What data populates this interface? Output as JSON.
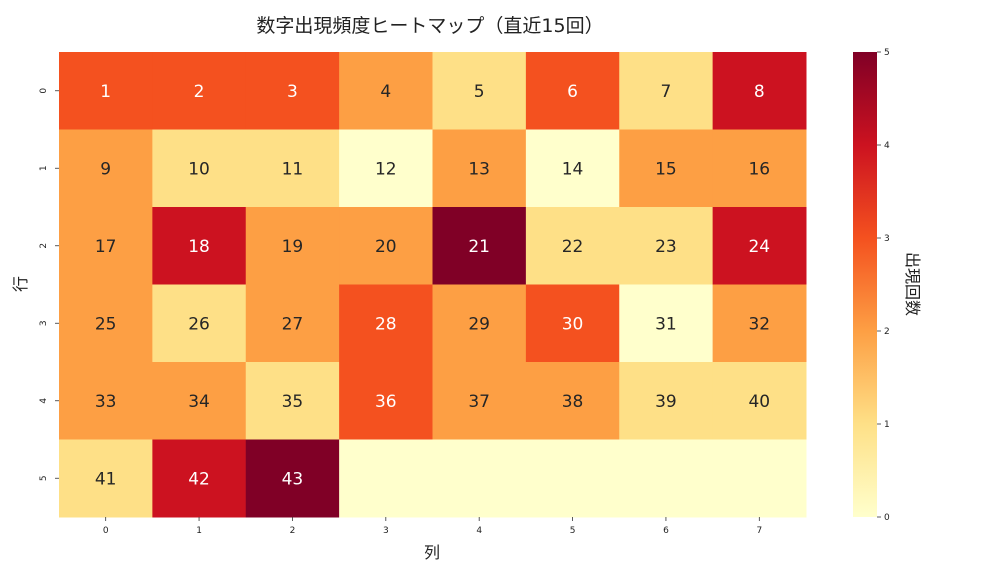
{
  "chart_data": {
    "type": "heatmap",
    "title": "数字出現頻度ヒートマップ（直近15回）",
    "xlabel": "列",
    "ylabel": "行",
    "x_ticks": [
      "0",
      "1",
      "2",
      "3",
      "4",
      "5",
      "6",
      "7"
    ],
    "y_ticks": [
      "0",
      "1",
      "2",
      "3",
      "4",
      "5"
    ],
    "values": [
      [
        3,
        3,
        3,
        2,
        1,
        3,
        1,
        4
      ],
      [
        2,
        1,
        1,
        0,
        2,
        0,
        2,
        2
      ],
      [
        2,
        4,
        2,
        2,
        5,
        1,
        1,
        4
      ],
      [
        2,
        1,
        2,
        3,
        2,
        3,
        0,
        2
      ],
      [
        2,
        2,
        1,
        3,
        2,
        2,
        1,
        1
      ],
      [
        1,
        4,
        5,
        0,
        0,
        0,
        0,
        0
      ]
    ],
    "annotations": [
      [
        "1",
        "2",
        "3",
        "4",
        "5",
        "6",
        "7",
        "8"
      ],
      [
        "9",
        "10",
        "11",
        "12",
        "13",
        "14",
        "15",
        "16"
      ],
      [
        "17",
        "18",
        "19",
        "20",
        "21",
        "22",
        "23",
        "24"
      ],
      [
        "25",
        "26",
        "27",
        "28",
        "29",
        "30",
        "31",
        "32"
      ],
      [
        "33",
        "34",
        "35",
        "36",
        "37",
        "38",
        "39",
        "40"
      ],
      [
        "41",
        "42",
        "43",
        "",
        "",
        "",
        "",
        ""
      ]
    ],
    "colorbar": {
      "label": "出現回数",
      "range": [
        0,
        5
      ],
      "ticks": [
        "0",
        "1",
        "2",
        "3",
        "4",
        "5"
      ],
      "colors": [
        "#ffffcc",
        "#fee087",
        "#fd9f44",
        "#f4511f",
        "#cc1220",
        "#800026"
      ]
    }
  }
}
